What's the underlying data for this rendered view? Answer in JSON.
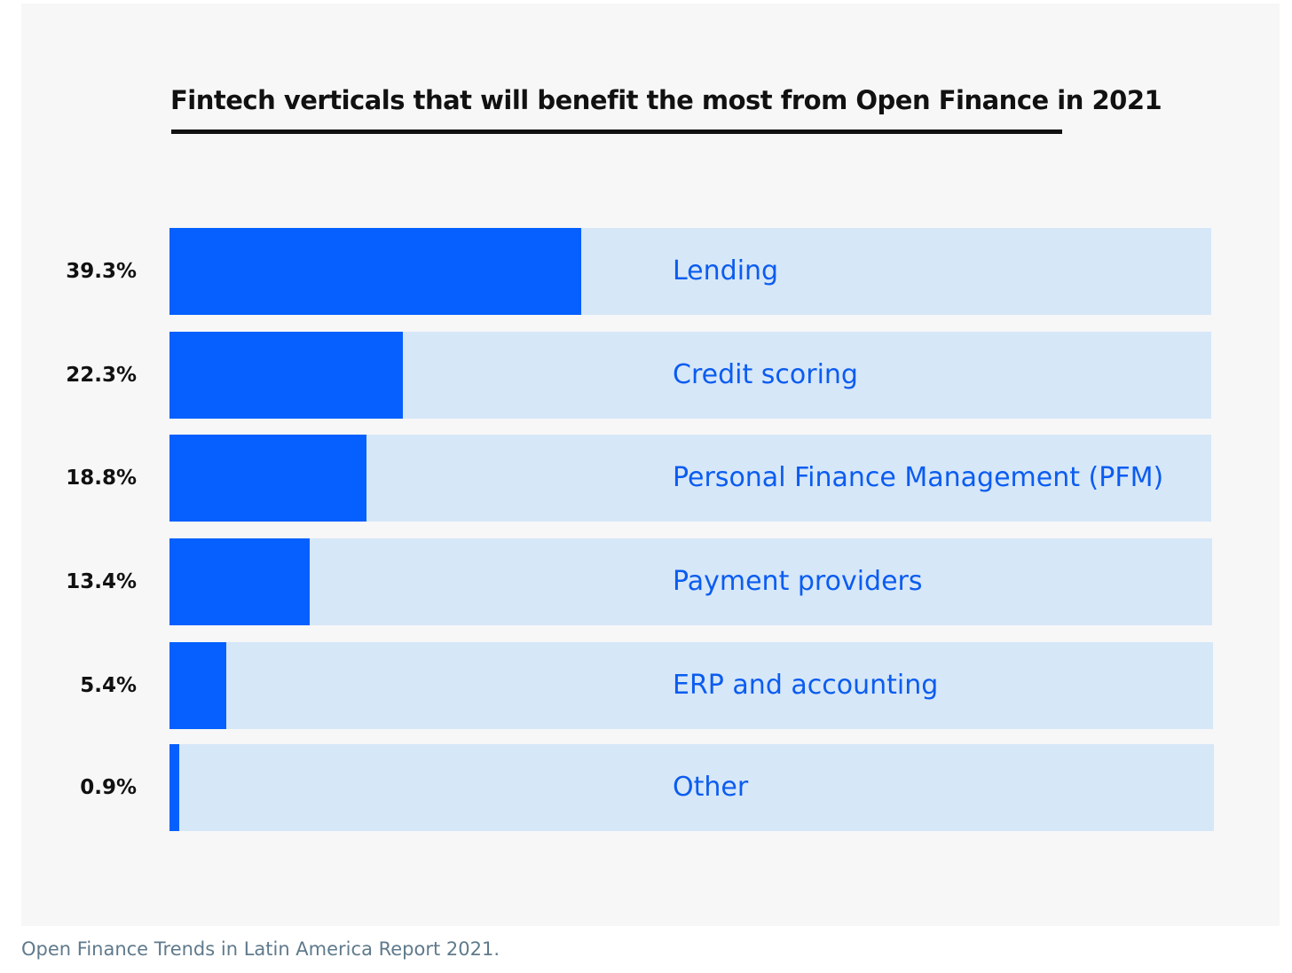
{
  "caption": "Open Finance Trends in Latin America Report 2021.",
  "colors": {
    "bar_fill": "#0560ff",
    "bar_track": "#d6e7f8",
    "category_text": "#0b5cf0",
    "background": "#f7f7f7"
  },
  "chart_data": {
    "type": "bar",
    "orientation": "horizontal",
    "title": "Fintech verticals that will benefit the most from Open Finance in 2021",
    "categories": [
      "Lending",
      "Credit scoring",
      "Personal Finance Management (PFM)",
      "Payment providers",
      "ERP and accounting",
      "Other"
    ],
    "values": [
      39.3,
      22.3,
      18.8,
      13.4,
      5.4,
      0.9
    ],
    "value_labels": [
      "39.3%",
      "22.3%",
      "18.8%",
      "13.4%",
      "5.4%",
      "0.9%"
    ],
    "xlim": [
      0,
      100
    ],
    "grid": false,
    "legend": "none"
  }
}
